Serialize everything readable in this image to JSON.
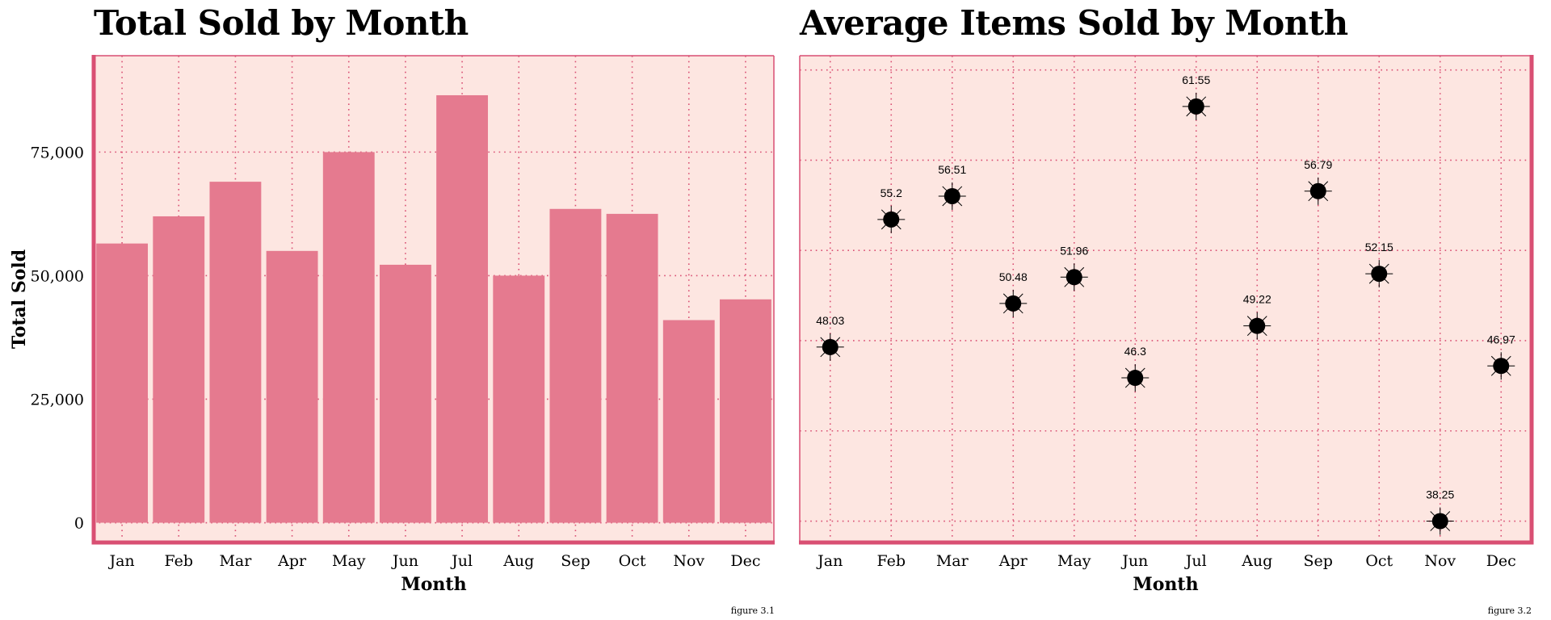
{
  "colors": {
    "panel_bg": "#fde6e1",
    "accent": "#d94f73",
    "bar_fill": "#e57a8f",
    "grid": "#d94f73",
    "point": "#000000"
  },
  "chart_data": [
    {
      "type": "bar",
      "title": "Total Sold by Month",
      "xlabel": "Month",
      "ylabel": "Total Sold",
      "categories": [
        "Jan",
        "Feb",
        "Mar",
        "Apr",
        "May",
        "Jun",
        "Jul",
        "Aug",
        "Sep",
        "Oct",
        "Nov",
        "Dec"
      ],
      "values": [
        56500,
        62000,
        69000,
        55000,
        75000,
        52200,
        86500,
        50000,
        63500,
        62500,
        41000,
        45200
      ],
      "ylim": [
        -4000,
        94500
      ],
      "yticks": [
        0,
        25000,
        50000,
        75000
      ],
      "ytick_labels": [
        "0",
        "25,000",
        "50,000",
        "75,000"
      ],
      "grid": true,
      "caption": "figure 3.1"
    },
    {
      "type": "scatter",
      "title": "Average Items Sold by Month",
      "xlabel": "Month",
      "ylabel": "",
      "categories": [
        "Jan",
        "Feb",
        "Mar",
        "Apr",
        "May",
        "Jun",
        "Jul",
        "Aug",
        "Sep",
        "Oct",
        "Nov",
        "Dec"
      ],
      "values": [
        48.03,
        55.2,
        56.51,
        50.48,
        51.96,
        46.3,
        61.55,
        49.22,
        56.79,
        52.15,
        38.25,
        46.97
      ],
      "data_labels": [
        "48.03",
        "55.2",
        "56.51",
        "50.48",
        "51.96",
        "46.3",
        "61.55",
        "49.22",
        "56.79",
        "52.15",
        "38.25",
        "46.97"
      ],
      "ylim": [
        37.05,
        64.4
      ],
      "grid_y": [
        38.25,
        43.32,
        48.39,
        53.46,
        58.53,
        63.6
      ],
      "grid": true,
      "caption": "figure 3.2"
    }
  ]
}
